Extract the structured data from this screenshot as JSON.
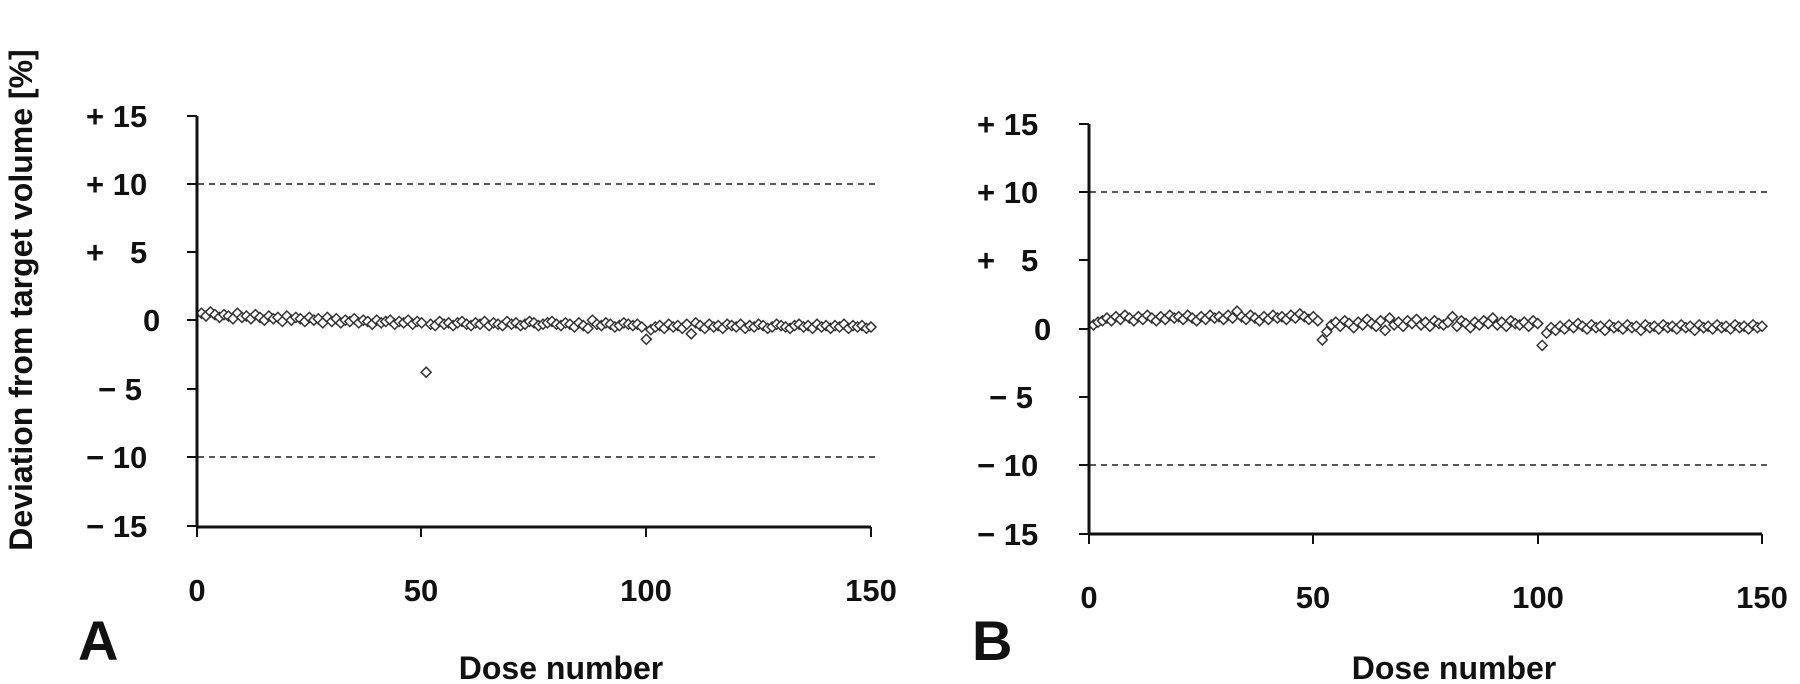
{
  "ylabel": "Deviation from target volume [%]",
  "chart_data": [
    {
      "type": "scatter",
      "panel": "A",
      "xlabel": "Dose number",
      "xlim": [
        0,
        150
      ],
      "ylim": [
        -15,
        15
      ],
      "x_ticks": [
        "0",
        "50",
        "100",
        "150"
      ],
      "y_ticks": [
        "+ 15",
        "+ 10",
        "+   5",
        "0",
        "− 5",
        "− 10",
        "− 15"
      ],
      "reference_lines": [
        10,
        -10
      ],
      "x_start": 1,
      "values": [
        0.6,
        0.4,
        0.7,
        0.5,
        0.3,
        0.5,
        0.4,
        0.2,
        0.6,
        0.3,
        0.4,
        0.2,
        0.5,
        0.3,
        0.1,
        0.4,
        0.2,
        0.3,
        0.0,
        0.4,
        0.1,
        0.3,
        0.2,
        0.0,
        0.3,
        0.1,
        0.2,
        -0.1,
        0.3,
        0.0,
        0.2,
        -0.1,
        0.1,
        0.0,
        0.2,
        -0.1,
        0.1,
        0.0,
        -0.2,
        0.1,
        -0.1,
        0.0,
        0.1,
        -0.2,
        0.0,
        -0.1,
        0.1,
        -0.2,
        0.0,
        -0.1,
        -3.7,
        -0.2,
        -0.3,
        0.0,
        -0.2,
        -0.1,
        -0.3,
        -0.1,
        0.0,
        -0.2,
        -0.3,
        -0.1,
        -0.2,
        0.0,
        -0.3,
        -0.1,
        -0.2,
        -0.3,
        0.0,
        -0.2,
        -0.1,
        -0.3,
        -0.2,
        0.0,
        -0.1,
        -0.3,
        -0.2,
        -0.1,
        0.0,
        -0.2,
        -0.3,
        -0.1,
        -0.2,
        -0.4,
        -0.1,
        -0.3,
        -0.5,
        0.1,
        -0.2,
        -0.3,
        -0.1,
        -0.2,
        -0.4,
        -0.3,
        -0.1,
        -0.2,
        -0.3,
        -0.2,
        -0.4,
        -1.3,
        -0.6,
        -0.4,
        -0.3,
        -0.5,
        -0.2,
        -0.4,
        -0.3,
        -0.5,
        -0.2,
        -0.9,
        -0.1,
        -0.3,
        -0.5,
        -0.2,
        -0.4,
        -0.3,
        -0.5,
        -0.2,
        -0.3,
        -0.4,
        -0.2,
        -0.5,
        -0.3,
        -0.4,
        -0.2,
        -0.3,
        -0.5,
        -0.4,
        -0.2,
        -0.3,
        -0.4,
        -0.5,
        -0.3,
        -0.2,
        -0.4,
        -0.3,
        -0.5,
        -0.2,
        -0.4,
        -0.3,
        -0.5,
        -0.3,
        -0.4,
        -0.2,
        -0.5,
        -0.3,
        -0.4,
        -0.3,
        -0.5,
        -0.4
      ]
    },
    {
      "type": "scatter",
      "panel": "B",
      "xlabel": "Dose number",
      "xlim": [
        0,
        150
      ],
      "ylim": [
        -15,
        15
      ],
      "x_ticks": [
        "0",
        "50",
        "100",
        "150"
      ],
      "y_ticks": [
        "+ 15",
        "+ 10",
        "+   5",
        "0",
        "− 5",
        "− 10",
        "− 15"
      ],
      "reference_lines": [
        10,
        -10
      ],
      "x_start": 1,
      "values": [
        0.3,
        0.5,
        0.6,
        0.8,
        0.6,
        0.9,
        0.7,
        1.0,
        0.8,
        0.6,
        0.9,
        0.7,
        1.0,
        0.8,
        0.6,
        0.9,
        0.7,
        1.0,
        0.8,
        0.9,
        0.7,
        1.0,
        0.8,
        0.6,
        0.9,
        0.7,
        1.0,
        0.8,
        0.9,
        0.7,
        1.0,
        0.8,
        1.3,
        0.9,
        0.7,
        1.0,
        0.8,
        0.6,
        0.9,
        0.7,
        1.0,
        0.8,
        0.9,
        0.7,
        1.0,
        0.8,
        1.1,
        0.9,
        0.7,
        0.9,
        0.6,
        -0.8,
        -0.2,
        0.3,
        0.5,
        0.2,
        0.6,
        0.4,
        0.1,
        0.5,
        0.3,
        0.7,
        0.4,
        0.2,
        0.6,
        -0.1,
        0.8,
        0.3,
        0.5,
        0.2,
        0.6,
        0.4,
        0.7,
        0.3,
        0.5,
        0.2,
        0.6,
        0.4,
        0.3,
        0.5,
        0.9,
        0.2,
        0.6,
        0.4,
        0.1,
        0.5,
        0.3,
        0.6,
        0.4,
        0.8,
        0.3,
        0.5,
        0.2,
        0.6,
        0.4,
        0.3,
        0.5,
        0.2,
        0.6,
        0.4,
        -1.2,
        -0.3,
        0.1,
        -0.1,
        0.2,
        0.0,
        0.3,
        0.1,
        0.4,
        0.2,
        0.0,
        0.3,
        0.1,
        0.2,
        -0.1,
        0.3,
        0.1,
        0.2,
        0.0,
        0.3,
        0.1,
        0.2,
        -0.1,
        0.3,
        0.1,
        0.2,
        0.0,
        0.3,
        0.1,
        0.2,
        0.0,
        0.3,
        0.1,
        0.2,
        -0.1,
        0.3,
        0.1,
        0.2,
        0.0,
        0.3,
        0.1,
        0.2,
        0.0,
        0.3,
        0.1,
        0.2,
        0.0,
        0.3,
        0.1,
        0.2
      ]
    }
  ]
}
